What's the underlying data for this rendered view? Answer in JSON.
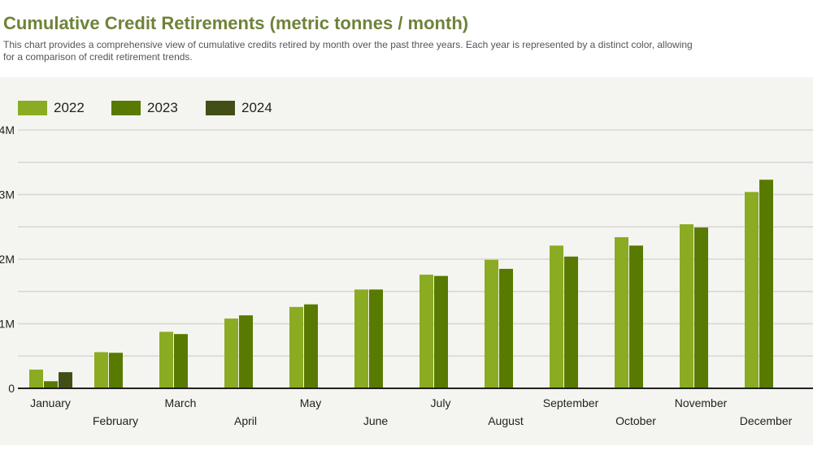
{
  "title": "Cumulative Credit Retirements (metric tonnes / month)",
  "description": [
    "This chart provides a comprehensive view of cumulative credits retired by month over the past three years. Each year is represented by a distinct color, allowing",
    "for a comparison of credit retirement trends."
  ],
  "colors": {
    "2022": "#8aab22",
    "2023": "#587a00",
    "2024": "#414f16"
  },
  "chart_data": {
    "type": "bar",
    "title": "Cumulative Credit Retirements (metric tonnes / month)",
    "xlabel": "",
    "ylabel": "",
    "ylim": [
      0,
      4000000
    ],
    "yticks": [
      0,
      1000000,
      2000000,
      3000000,
      4000000
    ],
    "ytick_labels": [
      "0",
      "1M",
      "2M",
      "3M",
      "4M"
    ],
    "grid": true,
    "legend_position": "top-left",
    "categories": [
      "January",
      "February",
      "March",
      "April",
      "May",
      "June",
      "July",
      "August",
      "September",
      "October",
      "November",
      "December"
    ],
    "series": [
      {
        "name": "2022",
        "values": [
          290000,
          560000,
          875000,
          1080000,
          1260000,
          1530000,
          1760000,
          1990000,
          2210000,
          2340000,
          2540000,
          3040000
        ]
      },
      {
        "name": "2023",
        "values": [
          110000,
          550000,
          840000,
          1130000,
          1300000,
          1530000,
          1740000,
          1850000,
          2040000,
          2210000,
          2490000,
          3230000
        ]
      },
      {
        "name": "2024",
        "values": [
          250000,
          null,
          null,
          null,
          null,
          null,
          null,
          null,
          null,
          null,
          null,
          null
        ]
      }
    ]
  }
}
